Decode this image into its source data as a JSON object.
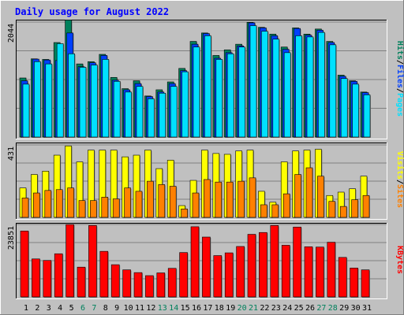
{
  "title": "Daily usage for August 2022",
  "colors": {
    "background": "#c0c0c0",
    "frame_light": "#ffffff",
    "frame_dark": "#808080",
    "plot_bg": "#c0c0c0",
    "gridline": "#808080",
    "title": "#0000ff",
    "hits": "#00805c",
    "files": "#0040ff",
    "pages": "#00e0ff",
    "visits": "#ffff00",
    "sites": "#ff8000",
    "kbytes": "#ff0000",
    "weekend_label": "#00805c",
    "weekday_label": "#000000"
  },
  "chart_data": [
    {
      "type": "bar",
      "panel": "hits-files-pages",
      "y_axis_max_label": "2044",
      "legend": [
        {
          "name": "Pages",
          "color": "#00e0ff"
        },
        {
          "name": "Files",
          "color": "#0040ff"
        },
        {
          "name": "Hits",
          "color": "#00805c"
        }
      ],
      "legend_separator": "/",
      "ylim": [
        0,
        2044
      ],
      "categories": [
        "1",
        "2",
        "3",
        "4",
        "5",
        "6",
        "7",
        "8",
        "9",
        "10",
        "11",
        "12",
        "13",
        "14",
        "15",
        "16",
        "17",
        "18",
        "19",
        "20",
        "21",
        "22",
        "23",
        "24",
        "25",
        "26",
        "27",
        "28",
        "29",
        "30",
        "31"
      ],
      "series": [
        {
          "name": "Hits",
          "values": [
            1050,
            1390,
            1380,
            1680,
            2080,
            1300,
            1340,
            1470,
            1060,
            860,
            1000,
            730,
            840,
            980,
            1220,
            1700,
            1850,
            1450,
            1550,
            1650,
            2040,
            1950,
            1830,
            1600,
            1940,
            1830,
            1920,
            1700,
            1100,
            1000,
            800
          ]
        },
        {
          "name": "Files",
          "values": [
            1000,
            1385,
            1370,
            1360,
            1850,
            1250,
            1320,
            1450,
            1010,
            840,
            950,
            720,
            800,
            950,
            1180,
            1650,
            1840,
            1400,
            1500,
            1620,
            2030,
            1940,
            1800,
            1560,
            1930,
            1810,
            1900,
            1680,
            1080,
            990,
            790
          ]
        },
        {
          "name": "Pages",
          "values": [
            940,
            1340,
            1300,
            1660,
            1480,
            1240,
            1280,
            1380,
            990,
            800,
            900,
            680,
            780,
            900,
            1160,
            1600,
            1800,
            1380,
            1480,
            1600,
            1980,
            1880,
            1740,
            1500,
            1800,
            1780,
            1860,
            1640,
            1040,
            940,
            750
          ]
        }
      ]
    },
    {
      "type": "bar",
      "panel": "visits-sites",
      "y_axis_max_label": "431",
      "legend": [
        {
          "name": "Sites",
          "color": "#ff8000"
        },
        {
          "name": "Visits",
          "color": "#ffff00"
        }
      ],
      "legend_separator": "/",
      "ylim": [
        0,
        431
      ],
      "categories": [
        "1",
        "2",
        "3",
        "4",
        "5",
        "6",
        "7",
        "8",
        "9",
        "10",
        "11",
        "12",
        "13",
        "14",
        "15",
        "16",
        "17",
        "18",
        "19",
        "20",
        "21",
        "22",
        "23",
        "24",
        "25",
        "26",
        "27",
        "28",
        "29",
        "30",
        "31"
      ],
      "series": [
        {
          "name": "Visits",
          "values": [
            175,
            255,
            275,
            370,
            425,
            330,
            400,
            400,
            400,
            360,
            370,
            400,
            290,
            340,
            70,
            220,
            400,
            380,
            375,
            395,
            400,
            155,
            90,
            330,
            395,
            400,
            405,
            130,
            150,
            170,
            245
          ]
        },
        {
          "name": "Sites",
          "values": [
            115,
            145,
            160,
            165,
            175,
            100,
            100,
            120,
            110,
            175,
            155,
            215,
            195,
            185,
            50,
            145,
            225,
            210,
            210,
            215,
            235,
            75,
            75,
            140,
            255,
            295,
            245,
            95,
            65,
            105,
            130
          ]
        }
      ]
    },
    {
      "type": "bar",
      "panel": "kbytes",
      "y_axis_max_label": "23851",
      "legend": [
        {
          "name": "KBytes",
          "color": "#ff0000"
        }
      ],
      "ylim": [
        0,
        23851
      ],
      "categories": [
        "1",
        "2",
        "3",
        "4",
        "5",
        "6",
        "7",
        "8",
        "9",
        "10",
        "11",
        "12",
        "13",
        "14",
        "15",
        "16",
        "17",
        "18",
        "19",
        "20",
        "21",
        "22",
        "23",
        "24",
        "25",
        "26",
        "27",
        "28",
        "29",
        "30",
        "31"
      ],
      "series": [
        {
          "name": "KBytes",
          "values": [
            21700,
            12500,
            12000,
            14200,
            23800,
            9800,
            23500,
            15000,
            10600,
            8900,
            8000,
            7000,
            7900,
            9400,
            14600,
            23100,
            19700,
            13600,
            14500,
            16600,
            20600,
            21200,
            23500,
            17000,
            23000,
            16500,
            16400,
            18000,
            13000,
            9500,
            8900
          ]
        }
      ]
    }
  ]
}
